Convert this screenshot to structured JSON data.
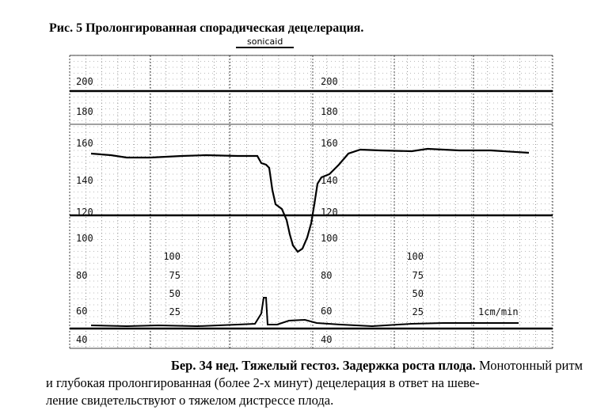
{
  "figure": {
    "title": "Рис. 5 Пролонгированная спорадическая децелерация.",
    "brand": "sonicaid",
    "fhr_labels_left": [
      200,
      180,
      160,
      140,
      120,
      100,
      80,
      60,
      40
    ],
    "fhr_labels_right": [
      200,
      180,
      160,
      140,
      120,
      100,
      80,
      60,
      40
    ],
    "toco_labels_left": [
      100,
      75,
      50,
      25
    ],
    "toco_labels_right": [
      100,
      75,
      50,
      25
    ],
    "speed": "1cm/min"
  },
  "caption": {
    "lead": "Бер. 34 нед. Тяжелый гестоз. Задержка роста плода.",
    "lines": [
      "Монотонный ритм",
      "и глубокая пролонгированная (более 2-х минут) децелерация в ответ на шеве-",
      "ление свидетельствуют о тяжелом дистрессе плода."
    ]
  }
}
